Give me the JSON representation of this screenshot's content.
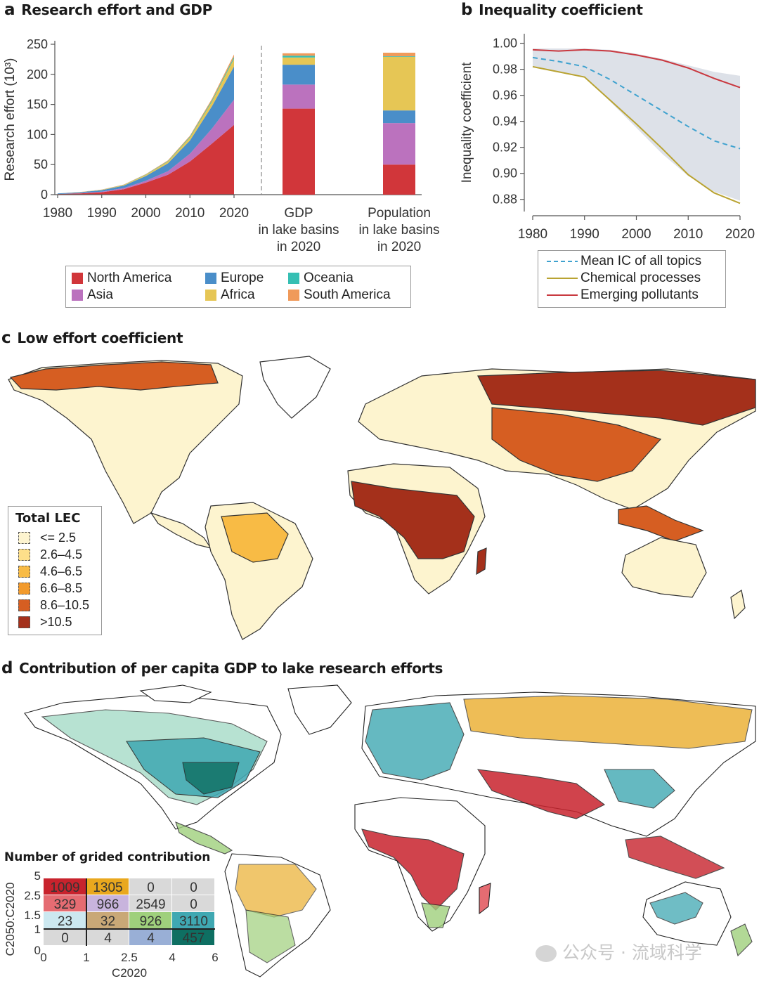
{
  "panel_a": {
    "letter": "a",
    "title": "Research effort and GDP"
  },
  "panel_b": {
    "letter": "b",
    "title": "Inequality coefficient"
  },
  "panel_c": {
    "letter": "c",
    "title": "Low effort coefficient"
  },
  "panel_d": {
    "letter": "d",
    "title": "Contribution of per capita GDP to lake research efforts"
  },
  "legend_a": {
    "items": [
      {
        "label": "North America",
        "color": "#d1363a"
      },
      {
        "label": "Europe",
        "color": "#4a8ec9"
      },
      {
        "label": "Oceania",
        "color": "#36bfb3"
      },
      {
        "label": "Asia",
        "color": "#bb72be"
      },
      {
        "label": "Africa",
        "color": "#e6c655"
      },
      {
        "label": "South America",
        "color": "#f09a5a"
      }
    ]
  },
  "legend_b": {
    "items": [
      {
        "label": "Mean IC of all topics",
        "color": "#3fa2cf",
        "style": "dashed"
      },
      {
        "label": "Chemical processes",
        "color": "#b9a332",
        "style": "solid"
      },
      {
        "label": "Emerging pollutants",
        "color": "#c9383f",
        "style": "solid"
      }
    ]
  },
  "legend_c": {
    "title": "Total LEC",
    "items": [
      {
        "label": "<= 2.5",
        "color": "#fdf4cf"
      },
      {
        "label": "2.6–4.5",
        "color": "#fddf8a"
      },
      {
        "label": "4.6–6.5",
        "color": "#f8bb45"
      },
      {
        "label": "6.6–8.5",
        "color": "#f29a2c"
      },
      {
        "label": "8.6–10.5",
        "color": "#d65e22"
      },
      {
        "label": ">10.5",
        "color": "#a4301b"
      }
    ]
  },
  "matrix_d": {
    "title": "Number of grided contribution",
    "ylabel": "C2050:C2020",
    "xlabel": "C2020",
    "y_ticks": [
      "5",
      "2.5",
      "1.5",
      "1",
      "0"
    ],
    "x_ticks": [
      "0",
      "1",
      "2.5",
      "4",
      "6"
    ],
    "rows": [
      [
        {
          "v": "1009",
          "c": "#c8232d",
          "t": "#fff"
        },
        {
          "v": "1305",
          "c": "#e9a81e",
          "t": "#222"
        },
        {
          "v": "0",
          "c": "#d9d9d9",
          "t": "#222"
        },
        {
          "v": "0",
          "c": "#d9d9d9",
          "t": "#222"
        }
      ],
      [
        {
          "v": "329",
          "c": "#e56c72",
          "t": "#222"
        },
        {
          "v": "966",
          "c": "#c8b4dd",
          "t": "#222"
        },
        {
          "v": "2549",
          "c": "#d9d9d9",
          "t": "#222"
        },
        {
          "v": "0",
          "c": "#d9d9d9",
          "t": "#222"
        }
      ],
      [
        {
          "v": "23",
          "c": "#cce8f0",
          "t": "#222"
        },
        {
          "v": "32",
          "c": "#c9a877",
          "t": "#222"
        },
        {
          "v": "926",
          "c": "#9fd07c",
          "t": "#222"
        },
        {
          "v": "3110",
          "c": "#3fa8b2",
          "t": "#fff"
        }
      ],
      [
        {
          "v": "0",
          "c": "#d9d9d9",
          "t": "#222"
        },
        {
          "v": "4",
          "c": "#d9d9d9",
          "t": "#222"
        },
        {
          "v": "4",
          "c": "#99afd6",
          "t": "#222"
        },
        {
          "v": "457",
          "c": "#0e6f62",
          "t": "#fff"
        }
      ]
    ]
  },
  "watermark": "公众号 · 流域科学",
  "chart_data": [
    {
      "type": "area",
      "panel": "a",
      "title": "Research effort and GDP",
      "ylabel": "Research effort (10³)",
      "ylim": [
        0,
        250
      ],
      "y_ticks": [
        0,
        50,
        100,
        150,
        200,
        250
      ],
      "x_ticks": [
        "1980",
        "1990",
        "2000",
        "2010",
        "2020"
      ],
      "x": [
        1980,
        1985,
        1990,
        1995,
        2000,
        2005,
        2010,
        2015,
        2020
      ],
      "series": [
        {
          "name": "North America",
          "color": "#d1363a",
          "values": [
            1,
            2,
            4,
            9,
            20,
            33,
            55,
            85,
            116
          ]
        },
        {
          "name": "Asia",
          "color": "#bb72be",
          "values": [
            0,
            0.5,
            1,
            2,
            3,
            6,
            13,
            25,
            42
          ]
        },
        {
          "name": "Europe",
          "color": "#4a8ec9",
          "values": [
            1,
            1.5,
            2.5,
            4,
            8,
            13,
            22,
            37,
            55
          ]
        },
        {
          "name": "Africa",
          "color": "#e6c655",
          "values": [
            0,
            0.2,
            0.5,
            1,
            2,
            3,
            5,
            8,
            13
          ]
        },
        {
          "name": "Oceania",
          "color": "#36bfb3",
          "values": [
            0,
            0.1,
            0.2,
            0.4,
            0.6,
            1,
            1.5,
            2,
            3
          ]
        },
        {
          "name": "South America",
          "color": "#f09a5a",
          "values": [
            0,
            0.1,
            0.2,
            0.4,
            0.6,
            1,
            1.5,
            2.5,
            4
          ]
        }
      ]
    },
    {
      "type": "bar",
      "panel": "a",
      "stacked": true,
      "categories": [
        "GDP\nin lake basins\nin 2020",
        "Population\nin lake basins\nin 2020"
      ],
      "category_lines": [
        [
          "GDP",
          "in lake basins",
          "in 2020"
        ],
        [
          "Population",
          "in lake basins",
          "in 2020"
        ]
      ],
      "ylim": [
        0,
        250
      ],
      "series": [
        {
          "name": "North America",
          "color": "#d1363a",
          "values": [
            143,
            50
          ]
        },
        {
          "name": "Asia",
          "color": "#bb72be",
          "values": [
            40,
            69
          ]
        },
        {
          "name": "Europe",
          "color": "#4a8ec9",
          "values": [
            33,
            21
          ]
        },
        {
          "name": "Africa",
          "color": "#e6c655",
          "values": [
            12,
            89
          ]
        },
        {
          "name": "Oceania",
          "color": "#36bfb3",
          "values": [
            3,
            1
          ]
        },
        {
          "name": "South America",
          "color": "#f09a5a",
          "values": [
            4,
            6
          ]
        }
      ]
    },
    {
      "type": "line",
      "panel": "b",
      "title": "Inequality coefficient",
      "ylabel": "Inequality coefficient",
      "ylim": [
        0.875,
        1.003
      ],
      "y_ticks": [
        "0.88",
        "0.90",
        "0.92",
        "0.94",
        "0.96",
        "0.98",
        "1.00"
      ],
      "x_ticks": [
        "1980",
        "1990",
        "2000",
        "2010",
        "2020"
      ],
      "x": [
        1980,
        1985,
        1990,
        1995,
        2000,
        2005,
        2010,
        2015,
        2020
      ],
      "band": {
        "upper": [
          0.996,
          0.996,
          0.996,
          0.995,
          0.992,
          0.988,
          0.983,
          0.978,
          0.975
        ],
        "lower": [
          0.982,
          0.978,
          0.974,
          0.955,
          0.935,
          0.915,
          0.898,
          0.886,
          0.879
        ]
      },
      "series": [
        {
          "name": "Mean IC of all topics",
          "color": "#3fa2cf",
          "style": "dashed",
          "values": [
            0.989,
            0.986,
            0.982,
            0.972,
            0.96,
            0.948,
            0.936,
            0.925,
            0.919
          ]
        },
        {
          "name": "Chemical processes",
          "color": "#b9a332",
          "style": "solid",
          "values": [
            0.982,
            0.978,
            0.974,
            0.956,
            0.938,
            0.919,
            0.899,
            0.885,
            0.877
          ]
        },
        {
          "name": "Emerging pollutants",
          "color": "#c9383f",
          "style": "solid",
          "values": [
            0.995,
            0.994,
            0.995,
            0.994,
            0.991,
            0.987,
            0.981,
            0.973,
            0.966
          ]
        }
      ]
    }
  ]
}
